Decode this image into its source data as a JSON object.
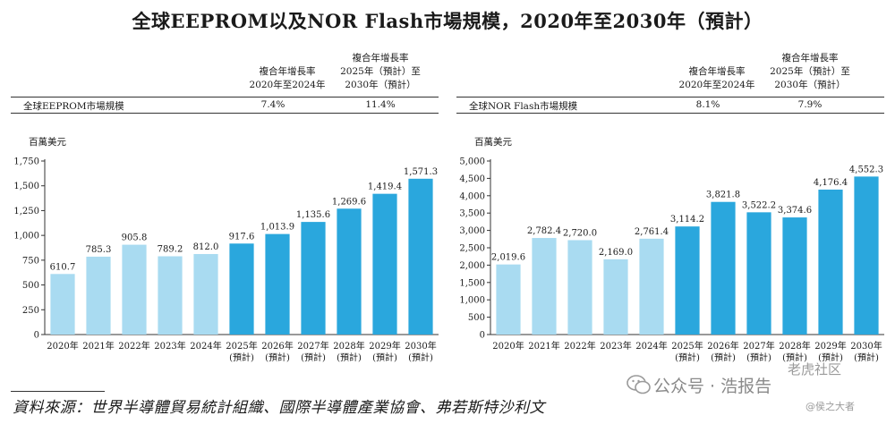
{
  "title": "全球EEPROM以及NOR Flash市場規模，2020年至2030年（預計）",
  "source": "資料來源：世界半導體貿易統計組織、國際半導體產業協會、弗若斯特沙利文",
  "watermark": {
    "main": "公众号 · 浩报告",
    "site": "老虎社区",
    "handle": "@侯之大者"
  },
  "colors": {
    "historical": "#a9dbf1",
    "forecast": "#2aa7dd",
    "text": "#1a1a1a"
  },
  "panels": [
    {
      "header": {
        "col1": [
          "複合年增長率",
          "2020年至2024年"
        ],
        "col2": [
          "複合年增長率",
          "2025年（預計）至",
          "2030年（預計）"
        ]
      },
      "row": {
        "label": "全球EEPROM市場規模",
        "cagr1": "7.4%",
        "cagr2": "11.4%"
      },
      "unit": "百萬美元"
    },
    {
      "header": {
        "col1": [
          "複合年增長率",
          "2020年至2024年"
        ],
        "col2": [
          "複合年增長率",
          "2025年（預計）至",
          "2030年（預計）"
        ]
      },
      "row": {
        "label": "全球NOR Flash市場規模",
        "cagr1": "8.1%",
        "cagr2": "7.9%"
      },
      "unit": "百萬美元"
    }
  ],
  "chart_data": [
    {
      "type": "bar",
      "title": "全球EEPROM市場規模",
      "ylabel": "百萬美元",
      "categories": [
        "2020年",
        "2021年",
        "2022年",
        "2023年",
        "2024年",
        "2025年",
        "2026年",
        "2027年",
        "2028年",
        "2029年",
        "2030年"
      ],
      "forecast_sublabel": "(預計)",
      "forecast_from_index": 5,
      "values": [
        610.7,
        785.3,
        905.8,
        789.2,
        812.0,
        917.6,
        1013.9,
        1135.6,
        1269.6,
        1419.4,
        1571.3
      ],
      "value_labels": [
        "610.7",
        "785.3",
        "905.8",
        "789.2",
        "812.0",
        "917.6",
        "1,013.9",
        "1,135.6",
        "1,269.6",
        "1,419.4",
        "1,571.3"
      ],
      "ylim": [
        0,
        1750
      ],
      "yticks": [
        0,
        250,
        500,
        750,
        1000,
        1250,
        1500,
        1750
      ],
      "ytick_labels": [
        "0",
        "250",
        "500",
        "750",
        "1,000",
        "1,250",
        "1,500",
        "1,750"
      ]
    },
    {
      "type": "bar",
      "title": "全球NOR Flash市場規模",
      "ylabel": "百萬美元",
      "categories": [
        "2020年",
        "2021年",
        "2022年",
        "2023年",
        "2024年",
        "2025年",
        "2026年",
        "2027年",
        "2028年",
        "2029年",
        "2030年"
      ],
      "forecast_sublabel": "(預計)",
      "forecast_from_index": 5,
      "values": [
        2019.6,
        2782.4,
        2720.0,
        2169.0,
        2761.4,
        3114.2,
        3821.8,
        3522.2,
        3374.6,
        4176.4,
        4552.3
      ],
      "value_labels": [
        "2,019.6",
        "2,782.4",
        "2,720.0",
        "2,169.0",
        "2,761.4",
        "3,114.2",
        "3,821.8",
        "3,522.2",
        "3,374.6",
        "4,176.4",
        "4,552.3"
      ],
      "ylim": [
        0,
        5000
      ],
      "yticks": [
        0,
        500,
        1000,
        1500,
        2000,
        2500,
        3000,
        3500,
        4000,
        4500,
        5000
      ],
      "ytick_labels": [
        "0",
        "500",
        "1,000",
        "1,500",
        "2,000",
        "2,500",
        "3,000",
        "3,500",
        "4,000",
        "4,500",
        "5,000"
      ]
    }
  ]
}
